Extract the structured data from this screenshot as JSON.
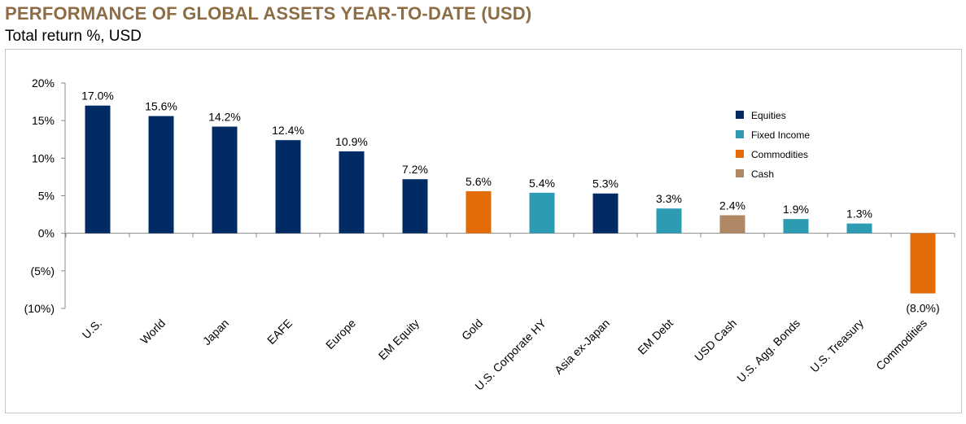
{
  "header": {
    "title": "PERFORMANCE OF GLOBAL ASSETS YEAR-TO-DATE (USD)",
    "subtitle": "Total return %, USD"
  },
  "colors": {
    "title": "#8C6D46",
    "Equities": "#002B65",
    "Fixed Income": "#2D9CB2",
    "Commodities": "#E36C09",
    "Cash": "#B08764"
  },
  "chart_data": {
    "type": "bar",
    "title": "PERFORMANCE OF GLOBAL ASSETS YEAR-TO-DATE (USD)",
    "subtitle": "Total return %, USD",
    "xlabel": "",
    "ylabel": "",
    "ylim": [
      -10,
      20
    ],
    "yticks": [
      20,
      15,
      10,
      5,
      0,
      -5,
      -10
    ],
    "ytick_labels": [
      "20%",
      "15%",
      "10%",
      "5%",
      "0%",
      "(5%)",
      "(10%)"
    ],
    "grid": false,
    "legend_position": "top-right",
    "categories": [
      "U.S.",
      "World",
      "Japan",
      "EAFE",
      "Europe",
      "EM Equity",
      "Gold",
      "U.S. Corporate HY",
      "Asia ex-Japan",
      "EM Debt",
      "USD Cash",
      "U.S. Agg. Bonds",
      "U.S. Treasury",
      "Commodities"
    ],
    "values": [
      17.0,
      15.6,
      14.2,
      12.4,
      10.9,
      7.2,
      5.6,
      5.4,
      5.3,
      3.3,
      2.4,
      1.9,
      1.3,
      -8.0
    ],
    "value_labels": [
      "17.0%",
      "15.6%",
      "14.2%",
      "12.4%",
      "10.9%",
      "7.2%",
      "5.6%",
      "5.4%",
      "5.3%",
      "3.3%",
      "2.4%",
      "1.9%",
      "1.3%",
      "(8.0%)"
    ],
    "groups": [
      "Equities",
      "Equities",
      "Equities",
      "Equities",
      "Equities",
      "Equities",
      "Commodities",
      "Fixed Income",
      "Equities",
      "Fixed Income",
      "Cash",
      "Fixed Income",
      "Fixed Income",
      "Commodities"
    ],
    "legend": [
      "Equities",
      "Fixed Income",
      "Commodities",
      "Cash"
    ]
  }
}
